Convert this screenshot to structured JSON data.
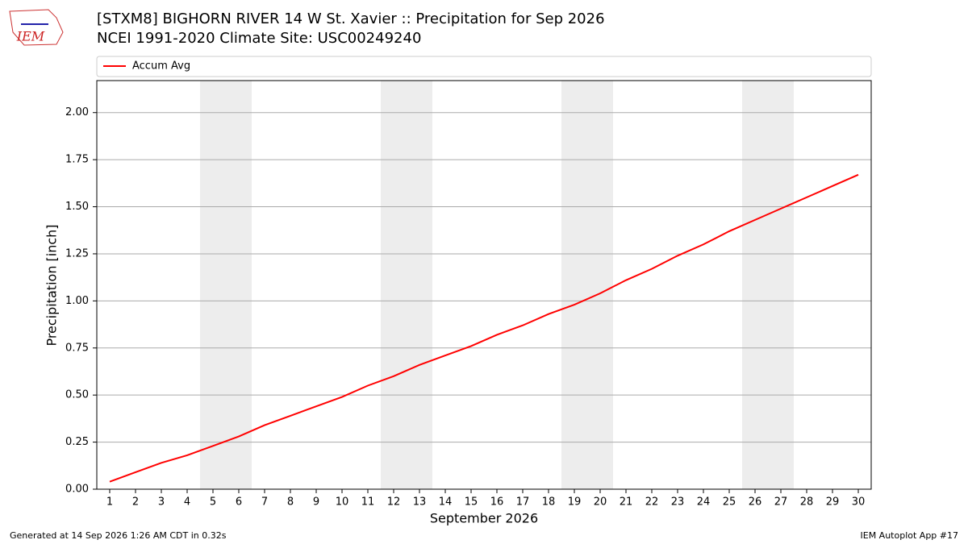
{
  "chart_data": {
    "type": "line",
    "title": "[STXM8] BIGHORN RIVER 14 W St. Xavier :: Precipitation for Sep 2026",
    "subtitle": "NCEI 1991-2020 Climate Site: USC00249240",
    "x_label": "September 2026",
    "y_label": "Precipitation [inch]",
    "x": [
      1,
      2,
      3,
      4,
      5,
      6,
      7,
      8,
      9,
      10,
      11,
      12,
      13,
      14,
      15,
      16,
      17,
      18,
      19,
      20,
      21,
      22,
      23,
      24,
      25,
      26,
      27,
      28,
      29,
      30
    ],
    "series": [
      {
        "name": "Accum Avg",
        "color": "#ff0000",
        "values": [
          0.04,
          0.09,
          0.14,
          0.18,
          0.23,
          0.28,
          0.34,
          0.39,
          0.44,
          0.49,
          0.55,
          0.6,
          0.66,
          0.71,
          0.76,
          0.82,
          0.87,
          0.93,
          0.98,
          1.04,
          1.11,
          1.17,
          1.24,
          1.3,
          1.37,
          1.43,
          1.49,
          1.55,
          1.61,
          1.67
        ]
      }
    ],
    "xlim": [
      0.5,
      30.5
    ],
    "ylim": [
      0,
      2.17
    ],
    "xticks": [
      1,
      2,
      3,
      4,
      5,
      6,
      7,
      8,
      9,
      10,
      11,
      12,
      13,
      14,
      15,
      16,
      17,
      18,
      19,
      20,
      21,
      22,
      23,
      24,
      25,
      26,
      27,
      28,
      29,
      30
    ],
    "yticks": [
      {
        "value": 0,
        "label": "0.00"
      },
      {
        "value": 0.25,
        "label": "0.25"
      },
      {
        "value": 0.5,
        "label": "0.50"
      },
      {
        "value": 0.75,
        "label": "0.75"
      },
      {
        "value": 1,
        "label": "1.00"
      },
      {
        "value": 1.25,
        "label": "1.25"
      },
      {
        "value": 1.5,
        "label": "1.50"
      },
      {
        "value": 1.75,
        "label": "1.75"
      },
      {
        "value": 2,
        "label": "2.00"
      }
    ],
    "weekend_spans": [
      [
        4.5,
        6.5
      ],
      [
        11.5,
        13.5
      ],
      [
        18.5,
        20.5
      ],
      [
        25.5,
        27.5
      ]
    ],
    "grid": true,
    "legend": "top"
  },
  "footer": {
    "left": "Generated at 14 Sep 2026 1:26 AM CDT in 0.32s",
    "right": "IEM Autoplot App #17",
    "logo": "IEM"
  }
}
